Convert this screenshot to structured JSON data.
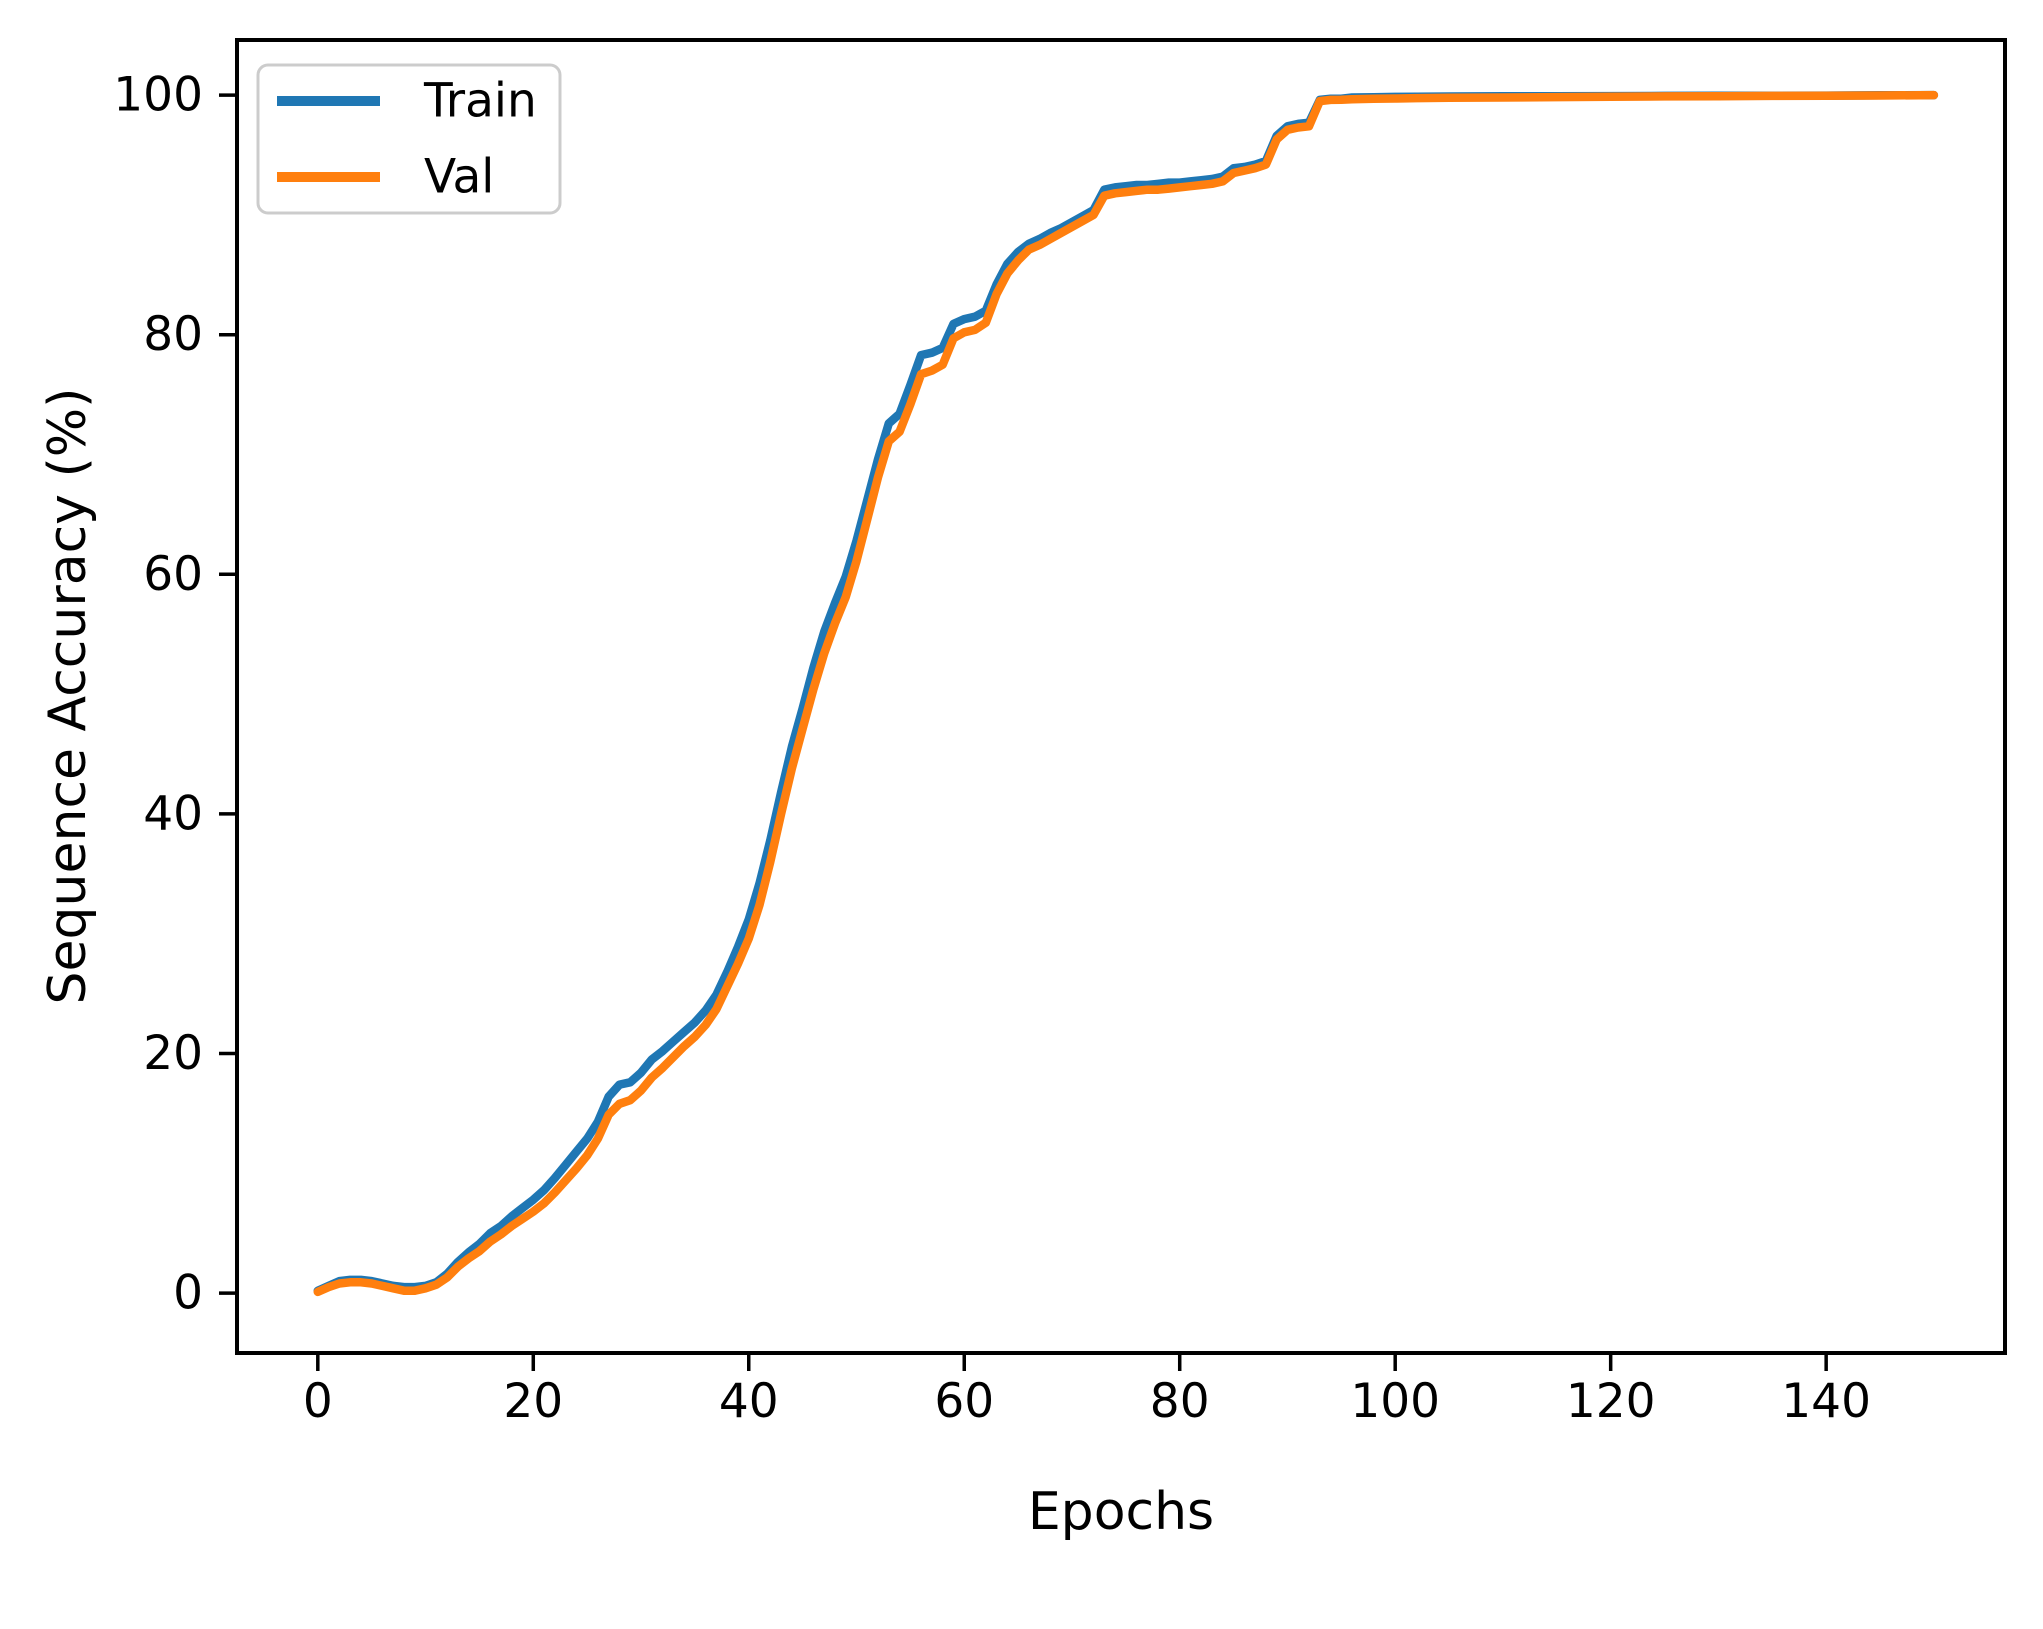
{
  "figure": {
    "background": "#ffffff",
    "spine_color": "#000000",
    "text_color": "#000000"
  },
  "chart_data": {
    "type": "line",
    "title": "",
    "xlabel": "Epochs",
    "ylabel": "Sequence Accuracy (%)",
    "xlim": [
      -7.5,
      156.6
    ],
    "ylim": [
      -5,
      104.6
    ],
    "xticks": [
      0,
      20,
      40,
      60,
      80,
      100,
      120,
      140
    ],
    "yticks": [
      0,
      20,
      40,
      60,
      80,
      100
    ],
    "grid": false,
    "legend": {
      "position": "upper-left",
      "border_color": "#cccccc",
      "background": "#ffffff"
    },
    "x": [
      0,
      1,
      2,
      3,
      4,
      5,
      6,
      7,
      8,
      9,
      10,
      11,
      12,
      13,
      14,
      15,
      16,
      17,
      18,
      19,
      20,
      21,
      22,
      23,
      24,
      25,
      26,
      27,
      28,
      29,
      30,
      31,
      32,
      33,
      34,
      35,
      36,
      37,
      38,
      39,
      40,
      41,
      42,
      43,
      44,
      45,
      46,
      47,
      48,
      49,
      50,
      51,
      52,
      53,
      54,
      55,
      56,
      57,
      58,
      59,
      60,
      61,
      62,
      63,
      64,
      65,
      66,
      67,
      68,
      69,
      70,
      71,
      72,
      73,
      74,
      75,
      76,
      77,
      78,
      79,
      80,
      81,
      82,
      83,
      84,
      85,
      86,
      87,
      88,
      89,
      90,
      91,
      92,
      93,
      94,
      95,
      96,
      98,
      100,
      102,
      105,
      110,
      115,
      120,
      125,
      130,
      135,
      140,
      145,
      150
    ],
    "series": [
      {
        "name": "Train",
        "color": "#1f77b4",
        "values": [
          0.2,
          0.6,
          1.0,
          1.1,
          1.1,
          1.0,
          0.8,
          0.6,
          0.5,
          0.5,
          0.6,
          0.9,
          1.6,
          2.6,
          3.4,
          4.1,
          5.0,
          5.6,
          6.4,
          7.1,
          7.8,
          8.6,
          9.6,
          10.7,
          11.8,
          12.9,
          14.3,
          16.4,
          17.4,
          17.6,
          18.4,
          19.5,
          20.2,
          21.0,
          21.8,
          22.6,
          23.6,
          24.9,
          26.8,
          28.9,
          31.2,
          34.2,
          37.8,
          41.8,
          45.6,
          48.8,
          52.2,
          55.2,
          57.6,
          59.8,
          62.8,
          66.2,
          69.6,
          72.6,
          73.4,
          75.8,
          78.3,
          78.5,
          78.9,
          80.9,
          81.3,
          81.5,
          82.0,
          84.2,
          85.9,
          86.9,
          87.6,
          88.0,
          88.5,
          88.9,
          89.4,
          89.9,
          90.4,
          92.1,
          92.3,
          92.4,
          92.5,
          92.5,
          92.6,
          92.7,
          92.7,
          92.8,
          92.9,
          93.0,
          93.2,
          93.9,
          94.0,
          94.2,
          94.5,
          96.6,
          97.4,
          97.6,
          97.7,
          99.6,
          99.7,
          99.7,
          99.8,
          99.82,
          99.85,
          99.86,
          99.88,
          99.9,
          99.91,
          99.92,
          99.93,
          99.94,
          99.95,
          99.96,
          99.98,
          100.0
        ]
      },
      {
        "name": "Val",
        "color": "#ff7f0e",
        "values": [
          0.1,
          0.5,
          0.8,
          0.9,
          0.9,
          0.8,
          0.6,
          0.4,
          0.2,
          0.2,
          0.4,
          0.7,
          1.3,
          2.2,
          2.9,
          3.5,
          4.3,
          4.9,
          5.6,
          6.2,
          6.8,
          7.5,
          8.4,
          9.4,
          10.4,
          11.5,
          12.9,
          14.9,
          15.8,
          16.1,
          16.9,
          18.0,
          18.8,
          19.7,
          20.6,
          21.4,
          22.4,
          23.7,
          25.6,
          27.5,
          29.6,
          32.4,
          36.0,
          40.0,
          43.8,
          47.1,
          50.4,
          53.4,
          55.9,
          58.1,
          61.1,
          64.6,
          68.1,
          71.1,
          71.9,
          74.2,
          76.7,
          77.0,
          77.5,
          79.7,
          80.2,
          80.4,
          81.0,
          83.4,
          85.1,
          86.2,
          87.1,
          87.5,
          88.0,
          88.5,
          89.0,
          89.5,
          90.0,
          91.6,
          91.8,
          91.9,
          92.0,
          92.1,
          92.1,
          92.2,
          92.3,
          92.4,
          92.5,
          92.6,
          92.8,
          93.5,
          93.7,
          93.9,
          94.2,
          96.3,
          97.1,
          97.3,
          97.4,
          99.5,
          99.6,
          99.62,
          99.66,
          99.7,
          99.72,
          99.75,
          99.78,
          99.8,
          99.83,
          99.86,
          99.89,
          99.91,
          99.93,
          99.95,
          99.97,
          100.0
        ]
      }
    ]
  }
}
